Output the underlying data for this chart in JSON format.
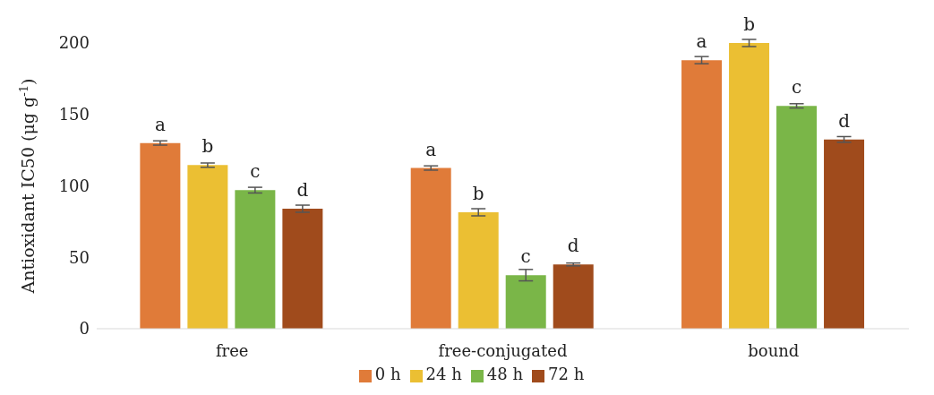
{
  "chart_data": {
    "type": "bar",
    "ylabel": "Antioxidant IC50  (μg g$^{-1}$)",
    "categories": [
      "free",
      "free-conjugated",
      "bound"
    ],
    "series": [
      {
        "name": "0 h",
        "color": "#e07b39",
        "values": [
          130,
          112.5,
          188
        ],
        "errors": [
          1.5,
          1.5,
          2.5
        ],
        "value_labels": [
          "a",
          "a",
          "a"
        ]
      },
      {
        "name": "24 h",
        "color": "#ebbf33",
        "values": [
          114.5,
          81.5,
          200
        ],
        "errors": [
          1.5,
          2.5,
          2.5
        ],
        "value_labels": [
          "b",
          "b",
          "b"
        ]
      },
      {
        "name": "48 h",
        "color": "#7ab648",
        "values": [
          97,
          37.5,
          156
        ],
        "errors": [
          2,
          4,
          1.5
        ],
        "value_labels": [
          "c",
          "c",
          "c"
        ]
      },
      {
        "name": "72 h",
        "color": "#a04b1c",
        "values": [
          84,
          45,
          132.5
        ],
        "errors": [
          2.5,
          1,
          2
        ],
        "value_labels": [
          "d",
          "d",
          "d"
        ]
      }
    ],
    "ylim": [
      0,
      200
    ],
    "yticks": [
      0,
      50,
      100,
      150,
      200
    ],
    "grid": false,
    "legend": "bottom"
  }
}
